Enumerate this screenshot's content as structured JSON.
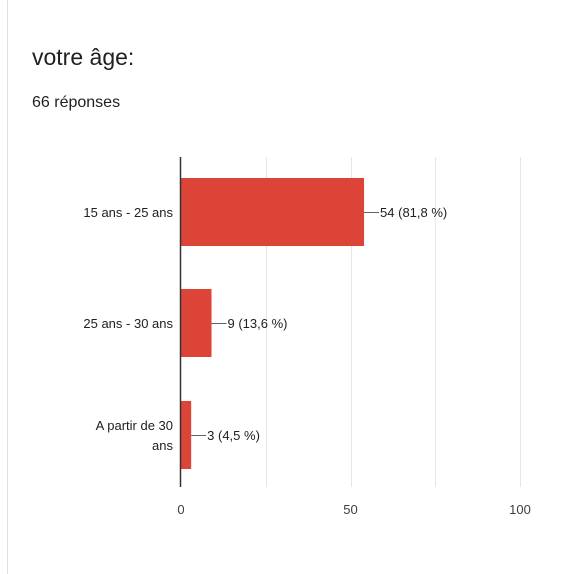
{
  "card": {
    "title": "votre âge:",
    "response_count": "66 réponses"
  },
  "colors": {
    "bar": "#db4437",
    "grid": "#e6e6e6",
    "axis": "#333333"
  },
  "chart_data": {
    "type": "bar",
    "orientation": "horizontal",
    "categories": [
      [
        "15 ans - 25 ans"
      ],
      [
        "25 ans - 30 ans"
      ],
      [
        "A partir de 30",
        "ans"
      ]
    ],
    "values": [
      54,
      9,
      3
    ],
    "data_labels": [
      "54 (81,8 %)",
      "9 (13,6 %)",
      "3 (4,5 %)"
    ],
    "xlim": [
      0,
      100
    ],
    "xticks": [
      0,
      50,
      100
    ],
    "xtick_labels": [
      "0",
      "50",
      "100"
    ],
    "grid": true,
    "legend": "none"
  }
}
